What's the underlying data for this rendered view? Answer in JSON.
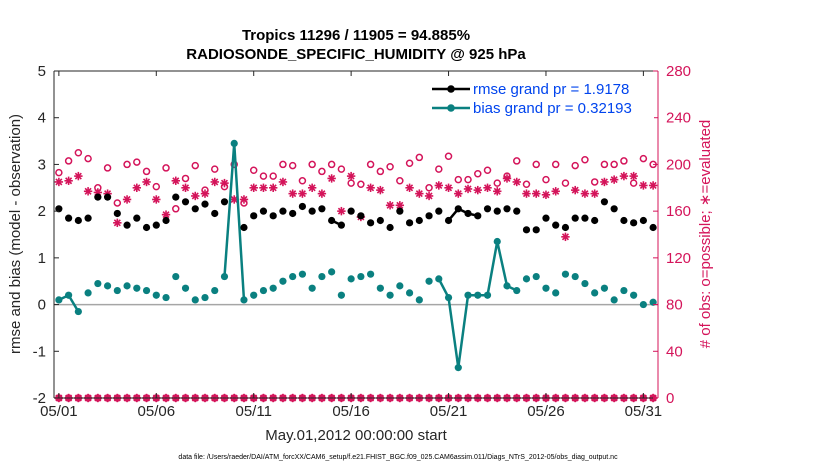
{
  "chart_data": {
    "type": "line",
    "title": [
      "Tropics 11296 / 11905 = 94.885%",
      "RADIOSONDE_SPECIFIC_HUMIDITY @ 925 hPa"
    ],
    "xlabel": "May.01,2012 00:00:00 start",
    "ylabel": "rmse and bias (model - observation)",
    "ylabel_right": "# of obs: o=possible; ∗=evaluated",
    "footnote": "data file: /Users/raeder/DAI/ATM_forcXX/CAM6_setup/f.e21.FHIST_BGC.f09_025.CAM6assim.011/Diags_NTrS_2012-05/obs_diag_output.nc",
    "xlim": [
      0.75,
      31.75
    ],
    "ylim": [
      -2,
      5
    ],
    "ylim_right": [
      0,
      280
    ],
    "x_ticks": [
      1,
      6,
      11,
      16,
      21,
      26,
      31
    ],
    "x_tick_labels": [
      "05/01",
      "05/06",
      "05/11",
      "05/16",
      "05/21",
      "05/26",
      "05/31"
    ],
    "y_ticks": [
      -2,
      -1,
      0,
      1,
      2,
      3,
      4,
      5
    ],
    "y_ticks_right": [
      0,
      40,
      80,
      120,
      160,
      200,
      240,
      280
    ],
    "colors": {
      "rmse": "#000000",
      "bias": "#0a8080",
      "obs": "#d4145a",
      "zero_line": "#a6a6a6",
      "legend_text": "#0044ee",
      "axis": "#262626"
    },
    "legend": [
      {
        "name": "rmse",
        "label": "rmse grand pr = 1.9178"
      },
      {
        "name": "bias",
        "label": "bias grand pr = 0.32193"
      }
    ],
    "x": [
      1.0,
      1.5,
      2.0,
      2.5,
      3.0,
      3.5,
      4.0,
      4.5,
      5.0,
      5.5,
      6.0,
      6.5,
      7.0,
      7.5,
      8.0,
      8.5,
      9.0,
      9.5,
      10.0,
      10.5,
      11.0,
      11.5,
      12.0,
      12.5,
      13.0,
      13.5,
      14.0,
      14.5,
      15.0,
      15.5,
      16.0,
      16.5,
      17.0,
      17.5,
      18.0,
      18.5,
      19.0,
      19.5,
      20.0,
      20.5,
      21.0,
      21.5,
      22.0,
      22.5,
      23.0,
      23.5,
      24.0,
      24.5,
      25.0,
      25.5,
      26.0,
      26.5,
      27.0,
      27.5,
      28.0,
      28.5,
      29.0,
      29.5,
      30.0,
      30.5,
      31.0,
      31.5
    ],
    "series": [
      {
        "name": "rmse",
        "values": [
          2.05,
          1.85,
          1.8,
          1.85,
          2.3,
          2.3,
          1.95,
          1.7,
          1.85,
          1.65,
          1.7,
          1.8,
          2.3,
          2.2,
          2.05,
          2.15,
          1.95,
          2.2,
          null,
          1.65,
          1.9,
          2.0,
          1.9,
          2.0,
          1.95,
          2.1,
          2.0,
          2.05,
          1.8,
          1.7,
          2.0,
          1.9,
          1.75,
          1.8,
          1.65,
          2.0,
          1.75,
          1.8,
          1.9,
          2.0,
          1.8,
          2.05,
          1.95,
          1.9,
          2.05,
          2.0,
          2.05,
          2.0,
          1.6,
          1.6,
          1.85,
          1.7,
          1.65,
          1.85,
          1.85,
          1.8,
          2.2,
          2.05,
          1.8,
          1.75,
          1.8,
          1.65
        ],
        "connected_runs": [
          [
            18,
            19
          ],
          [
            28,
            29
          ],
          [
            40,
            43
          ]
        ]
      },
      {
        "name": "bias",
        "values": [
          0.1,
          0.2,
          -0.15,
          0.25,
          0.45,
          0.4,
          0.3,
          0.4,
          0.35,
          0.3,
          0.2,
          0.15,
          0.6,
          0.35,
          0.1,
          0.15,
          0.3,
          0.6,
          3.45,
          0.1,
          0.2,
          0.3,
          0.35,
          0.5,
          0.6,
          0.65,
          0.35,
          0.6,
          0.7,
          0.2,
          0.55,
          0.6,
          0.65,
          0.35,
          0.2,
          0.4,
          0.25,
          0.1,
          0.5,
          0.55,
          0.15,
          -1.35,
          0.2,
          0.2,
          0.2,
          1.35,
          0.4,
          0.3,
          0.55,
          0.6,
          0.35,
          0.25,
          0.65,
          0.6,
          0.45,
          0.25,
          0.35,
          0.1,
          0.3,
          0.2,
          0.0,
          0.05
        ],
        "connected_runs": [
          [
            0,
            2
          ],
          [
            17,
            19
          ],
          [
            39,
            47
          ]
        ]
      },
      {
        "name": "obs_possible",
        "values": [
          193,
          203,
          210,
          205,
          180,
          197,
          167,
          200,
          202,
          194,
          181,
          197,
          162,
          188,
          199,
          178,
          196,
          181,
          200,
          167,
          195,
          190,
          190,
          200,
          199,
          186,
          200,
          194,
          200,
          196,
          184,
          183,
          200,
          194,
          198,
          186,
          201,
          206,
          180,
          196,
          207,
          187,
          187,
          192,
          195,
          184,
          190,
          203,
          183,
          200,
          187,
          200,
          184,
          199,
          204,
          185,
          200,
          200,
          203,
          184,
          205,
          200
        ]
      },
      {
        "name": "obs_evaluated",
        "values": [
          185,
          186,
          190,
          177,
          176,
          175,
          150,
          170,
          180,
          185,
          170,
          157,
          186,
          180,
          173,
          175,
          185,
          184,
          170,
          170,
          180,
          180,
          180,
          185,
          175,
          175,
          180,
          175,
          188,
          160,
          190,
          155,
          180,
          178,
          165,
          165,
          180,
          175,
          173,
          182,
          180,
          175,
          179,
          178,
          180,
          177,
          188,
          185,
          175,
          175,
          174,
          177,
          138,
          178,
          175,
          175,
          185,
          187,
          190,
          190,
          182,
          182
        ]
      },
      {
        "name": "obs_possible_zero",
        "values": [
          0,
          0,
          0,
          0,
          0,
          0,
          0,
          0,
          0,
          0,
          0,
          0,
          0,
          0,
          0,
          0,
          0,
          0,
          0,
          0,
          0,
          0,
          0,
          0,
          0,
          0,
          0,
          0,
          0,
          0,
          0,
          0,
          0,
          0,
          0,
          0,
          0,
          0,
          0,
          0,
          0,
          0,
          0,
          0,
          0,
          0,
          0,
          0,
          0,
          0,
          0,
          0,
          0,
          0,
          0,
          0,
          0,
          0,
          0,
          0,
          0,
          0
        ]
      },
      {
        "name": "obs_evaluated_zero",
        "values": [
          0,
          0,
          0,
          0,
          0,
          0,
          0,
          0,
          0,
          0,
          0,
          0,
          0,
          0,
          0,
          0,
          0,
          0,
          0,
          0,
          0,
          0,
          0,
          0,
          0,
          0,
          0,
          0,
          0,
          0,
          0,
          0,
          0,
          0,
          0,
          0,
          0,
          0,
          0,
          0,
          0,
          0,
          0,
          0,
          0,
          0,
          0,
          0,
          0,
          0,
          0,
          0,
          0,
          0,
          0,
          0,
          0,
          0,
          0,
          0,
          0,
          0
        ]
      }
    ]
  }
}
